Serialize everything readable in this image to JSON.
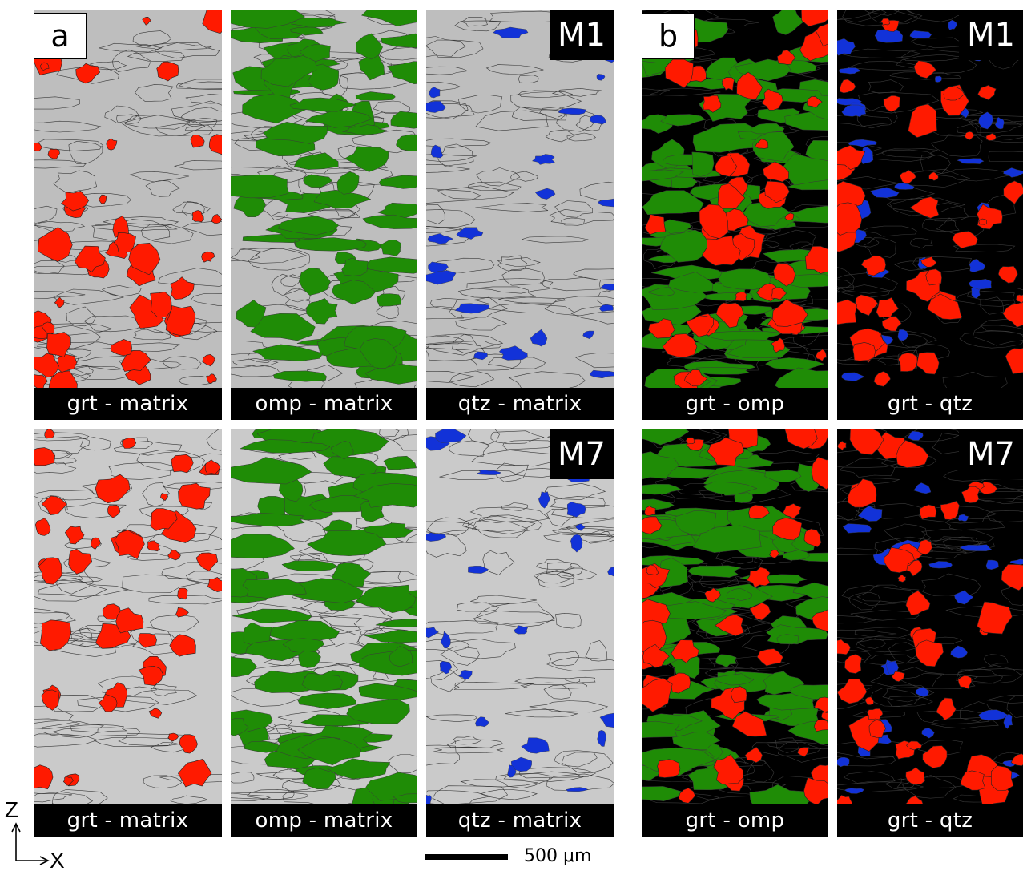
{
  "figure": {
    "panel_a_label": "a",
    "panel_b_label": "b",
    "sample_top": "M1",
    "sample_bottom": "M7",
    "captions": {
      "grt_matrix": "grt - matrix",
      "omp_matrix": "omp - matrix",
      "qtz_matrix": "qtz - matrix",
      "grt_omp": "grt - omp",
      "grt_qtz": "grt - qtz"
    },
    "axis": {
      "vertical": "Z",
      "horizontal": "X"
    },
    "scale_label": "500 μm"
  },
  "colors": {
    "garnet": "#ff1a00",
    "omphacite": "#1f8c06",
    "quartz": "#1232d8",
    "matrix_m1": "#bebebe",
    "matrix_m7": "#cacaca",
    "black_bg": "#000000",
    "boundary": "#3a3a3a"
  }
}
